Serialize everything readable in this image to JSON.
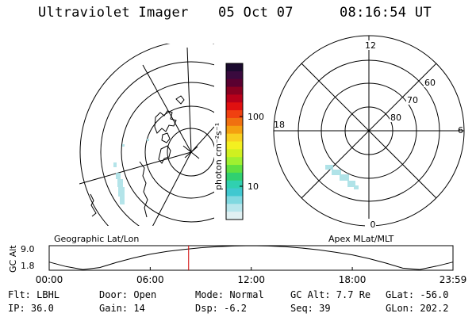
{
  "header": {
    "instrument": "Ultraviolet Imager",
    "date": "05 Oct 07",
    "time": "08:16:54 UT"
  },
  "colorbar": {
    "unit_label": "photon cm⁻²s⁻¹",
    "ticks": [
      "100",
      "10"
    ],
    "colors": [
      "#1a0a2e",
      "#3a0a3e",
      "#5a0030",
      "#8a0020",
      "#b8001a",
      "#e01010",
      "#f04010",
      "#f07010",
      "#f4a010",
      "#f8d020",
      "#f4f020",
      "#d0f020",
      "#a0f030",
      "#60e040",
      "#30d070",
      "#30d0b0",
      "#40c8d0",
      "#80d8e0",
      "#b8e6ec",
      "#e0f0f2"
    ]
  },
  "left_panel": {
    "name": "Geographic Lat/Lon"
  },
  "right_panel": {
    "name": "Apex MLat/MLT",
    "mlt_labels": {
      "top": "12",
      "bottom": "0",
      "left": "18",
      "right": "6"
    },
    "mlat_labels": [
      "60",
      "70",
      "80"
    ]
  },
  "timeline": {
    "ylabel": "GC Alt",
    "yticks": [
      "9.0",
      "1.8"
    ],
    "xticks": [
      "00:00",
      "06:00",
      "12:00",
      "18:00",
      "23:59"
    ],
    "current_marker_hours": 8.28,
    "marker_color": "#d00000"
  },
  "footer": {
    "filter": "Flt: LBHL",
    "door": "Door: Open",
    "mode": "Mode: Normal",
    "gc_alt": "GC Alt: 7.7 Re",
    "glat": "GLat: -56.0",
    "ip": "IP: 36.0",
    "gain": "Gain: 14",
    "dsp": "Dsp:    -6.2",
    "seq": "Seq: 39",
    "glon": "GLon: 202.2"
  },
  "chart_data": {
    "type": "line",
    "title": "",
    "xlabel": "",
    "ylabel": "GC Alt",
    "xlim": [
      0,
      23.98
    ],
    "ylim": [
      1.8,
      9.0
    ],
    "x": [
      0,
      1,
      2,
      3,
      4,
      5,
      6,
      7,
      8,
      9,
      10,
      11,
      12,
      13,
      14,
      15,
      16,
      17,
      18,
      19,
      20,
      21,
      22,
      23,
      23.98
    ],
    "series": [
      {
        "values": [
          4.2,
          2.9,
          2.0,
          2.6,
          4.1,
          5.4,
          6.5,
          7.3,
          7.9,
          8.4,
          8.7,
          8.9,
          9.0,
          8.9,
          8.7,
          8.3,
          7.8,
          7.1,
          6.3,
          5.2,
          3.9,
          2.4,
          2.0,
          3.0,
          4.2
        ]
      }
    ]
  }
}
